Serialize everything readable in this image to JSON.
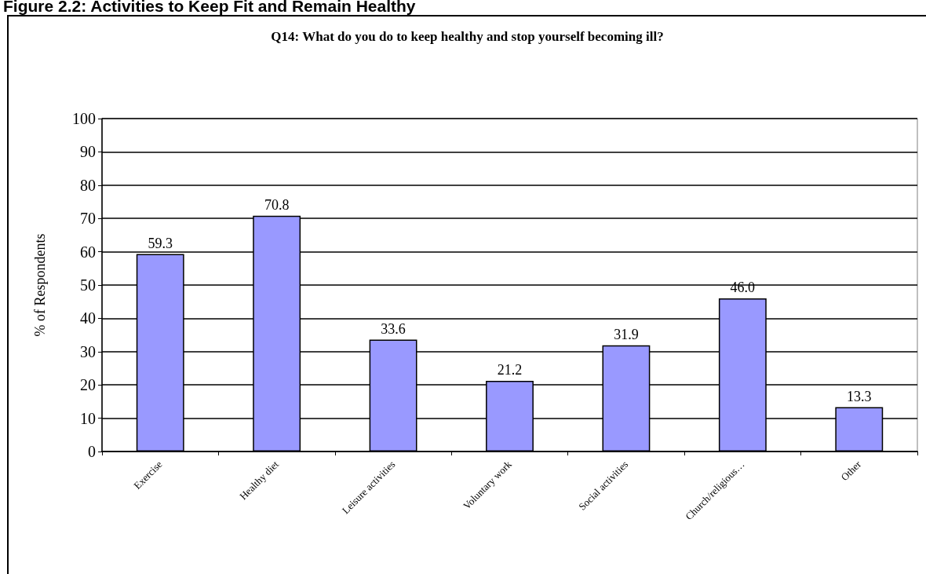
{
  "chart_data": {
    "type": "bar",
    "title": "Figure 2.2: Activities to Keep Fit and Remain Healthy",
    "subtitle": "Q14: What do you do to keep healthy and stop yourself becoming ill?",
    "ylabel": "% of Respondents",
    "categories": [
      "Exercise",
      "Healthy diet",
      "Leisure activities",
      "Voluntary work",
      "Social activities",
      "Church/religious…",
      "Other"
    ],
    "values": [
      59.3,
      70.8,
      33.6,
      21.2,
      31.9,
      46.0,
      13.3
    ],
    "value_labels": [
      "59.3",
      "70.8",
      "33.6",
      "21.2",
      "31.9",
      "46.0",
      "13.3"
    ],
    "color": "#9999ff",
    "ylim": [
      0,
      100
    ],
    "yticks": [
      0,
      10,
      20,
      30,
      40,
      50,
      60,
      70,
      80,
      90,
      100
    ],
    "grid": "y"
  }
}
